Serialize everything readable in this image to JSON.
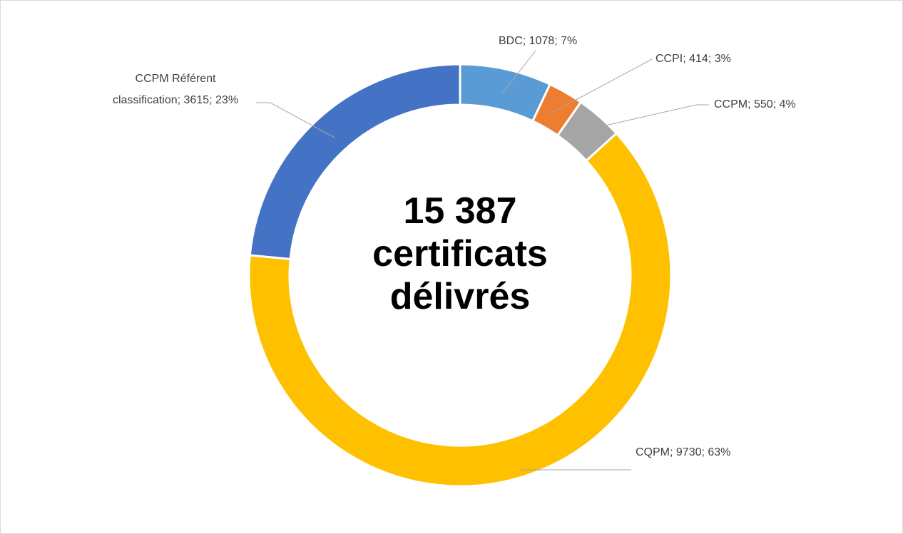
{
  "chart_data": {
    "type": "donut",
    "center_text": "15 387 certificats délivrés",
    "categories": [
      "BDC",
      "CCPI",
      "CCPM",
      "CQPM",
      "CCPM Référent classification"
    ],
    "values": [
      1078,
      414,
      550,
      9730,
      3615
    ],
    "value_labels": [
      "BDC; 1078; 7%",
      "CCPI; 414; 3%",
      "CCPM; 550; 4%",
      "CQPM; 9730; 63%",
      "CCPM Référent classification; 3615; 23%"
    ],
    "colors": [
      "#5b9bd5",
      "#ed7d31",
      "#a5a5a5",
      "#ffc000",
      "#4472c4"
    ]
  }
}
